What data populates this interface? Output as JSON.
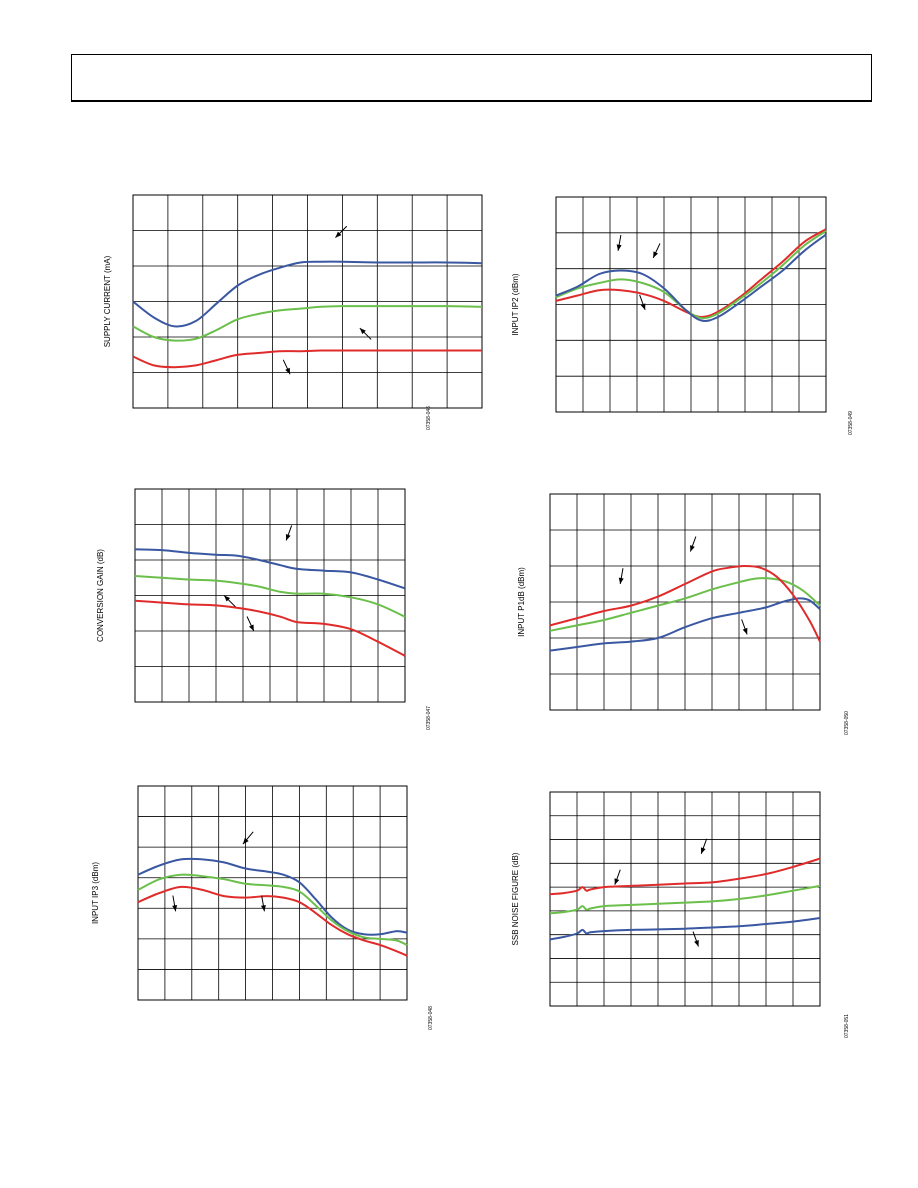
{
  "page": {
    "header_text": ""
  },
  "chart_data": [
    {
      "id": "supply-current",
      "type": "line",
      "ylabel": "SUPPLY CURRENT (mA)",
      "fig_id": "07358-046",
      "grid": true,
      "xlim": [
        0,
        10
      ],
      "ylim": [
        0,
        6
      ],
      "series": [
        {
          "color": "#3a57a2",
          "x": [
            0,
            0.6,
            1.2,
            1.8,
            2.4,
            3.0,
            3.6,
            4.2,
            4.8,
            5.4,
            6.0,
            7.0,
            8.0,
            9.0,
            10.0
          ],
          "y": [
            3.0,
            2.55,
            2.3,
            2.45,
            2.95,
            3.45,
            3.75,
            3.95,
            4.1,
            4.12,
            4.12,
            4.1,
            4.1,
            4.1,
            4.08
          ]
        },
        {
          "color": "#6bbf4b",
          "x": [
            0,
            0.6,
            1.2,
            1.8,
            2.4,
            3.0,
            3.6,
            4.2,
            4.8,
            5.4,
            6.0,
            7.0,
            8.0,
            9.0,
            10.0
          ],
          "y": [
            2.3,
            2.0,
            1.9,
            1.95,
            2.2,
            2.5,
            2.65,
            2.75,
            2.8,
            2.85,
            2.87,
            2.87,
            2.87,
            2.87,
            2.85
          ]
        },
        {
          "color": "#e02b2b",
          "x": [
            0,
            0.6,
            1.2,
            1.8,
            2.4,
            3.0,
            3.6,
            4.2,
            4.8,
            5.4,
            6.0,
            7.0,
            8.0,
            9.0,
            10.0
          ],
          "y": [
            1.45,
            1.2,
            1.15,
            1.2,
            1.35,
            1.5,
            1.55,
            1.6,
            1.6,
            1.62,
            1.62,
            1.62,
            1.62,
            1.62,
            1.62
          ]
        }
      ],
      "arrows": [
        {
          "x": 5.8,
          "y": 4.8,
          "angle": 225
        },
        {
          "x": 6.5,
          "y": 2.25,
          "angle": 135
        },
        {
          "x": 4.5,
          "y": 0.95,
          "angle": 295
        }
      ]
    },
    {
      "id": "input-ip2",
      "type": "line",
      "ylabel": "INPUT IP2 (dBm)",
      "fig_id": "07358-049",
      "grid": true,
      "xlim": [
        0,
        10
      ],
      "ylim": [
        0,
        6
      ],
      "series": [
        {
          "color": "#e02b2b",
          "x": [
            0,
            0.8,
            1.6,
            2.4,
            3.2,
            4.0,
            4.8,
            5.4,
            6.0,
            6.8,
            7.6,
            8.4,
            9.2,
            10.0
          ],
          "y": [
            3.1,
            3.25,
            3.4,
            3.4,
            3.3,
            3.1,
            2.8,
            2.65,
            2.8,
            3.2,
            3.7,
            4.2,
            4.75,
            5.1
          ]
        },
        {
          "color": "#6bbf4b",
          "x": [
            0,
            0.8,
            1.6,
            2.4,
            3.2,
            4.0,
            4.8,
            5.4,
            6.0,
            6.8,
            7.6,
            8.4,
            9.2,
            10.0
          ],
          "y": [
            3.2,
            3.45,
            3.6,
            3.7,
            3.6,
            3.35,
            2.85,
            2.62,
            2.75,
            3.15,
            3.6,
            4.1,
            4.65,
            5.05
          ]
        },
        {
          "color": "#3a57a2",
          "x": [
            0,
            0.8,
            1.6,
            2.4,
            3.2,
            4.0,
            4.8,
            5.4,
            6.0,
            6.8,
            7.6,
            8.4,
            9.2,
            10.0
          ],
          "y": [
            3.25,
            3.5,
            3.85,
            3.95,
            3.85,
            3.45,
            2.85,
            2.55,
            2.65,
            3.05,
            3.5,
            3.95,
            4.5,
            4.95
          ]
        }
      ],
      "arrows": [
        {
          "x": 2.3,
          "y": 4.5,
          "angle": 260
        },
        {
          "x": 3.6,
          "y": 4.3,
          "angle": 245
        },
        {
          "x": 3.3,
          "y": 2.85,
          "angle": 290
        }
      ]
    },
    {
      "id": "conversion-gain",
      "type": "line",
      "ylabel": "CONVERSION GAIN (dB)",
      "fig_id": "07358-047",
      "grid": true,
      "xlim": [
        0,
        10
      ],
      "ylim": [
        0,
        6
      ],
      "series": [
        {
          "color": "#3a57a2",
          "x": [
            0,
            1.0,
            2.0,
            3.0,
            3.8,
            4.6,
            5.4,
            6.0,
            7.0,
            8.0,
            9.0,
            10.0
          ],
          "y": [
            4.3,
            4.28,
            4.2,
            4.15,
            4.12,
            4.0,
            3.85,
            3.75,
            3.7,
            3.65,
            3.45,
            3.2
          ]
        },
        {
          "color": "#6bbf4b",
          "x": [
            0,
            1.0,
            2.0,
            3.0,
            3.8,
            4.6,
            5.4,
            6.0,
            7.0,
            8.0,
            9.0,
            10.0
          ],
          "y": [
            3.55,
            3.5,
            3.45,
            3.42,
            3.35,
            3.25,
            3.1,
            3.05,
            3.05,
            2.95,
            2.75,
            2.4
          ]
        },
        {
          "color": "#e02b2b",
          "x": [
            0,
            1.0,
            2.0,
            3.0,
            3.8,
            4.6,
            5.4,
            6.0,
            7.0,
            8.0,
            9.0,
            10.0
          ],
          "y": [
            2.85,
            2.8,
            2.75,
            2.72,
            2.65,
            2.55,
            2.4,
            2.25,
            2.2,
            2.05,
            1.7,
            1.3
          ]
        }
      ],
      "arrows": [
        {
          "x": 5.6,
          "y": 4.55,
          "angle": 250
        },
        {
          "x": 3.3,
          "y": 3.0,
          "angle": 135
        },
        {
          "x": 4.4,
          "y": 2.0,
          "angle": 295
        }
      ]
    },
    {
      "id": "input-p1db",
      "type": "line",
      "ylabel": "INPUT P1dB (dBm)",
      "fig_id": "07358-050",
      "grid": true,
      "xlim": [
        0,
        10
      ],
      "ylim": [
        0,
        6
      ],
      "series": [
        {
          "color": "#3a57a2",
          "x": [
            0,
            1.0,
            2.0,
            3.0,
            4.0,
            5.0,
            6.0,
            7.0,
            8.0,
            8.6,
            9.2,
            9.6,
            10.0
          ],
          "y": [
            1.65,
            1.75,
            1.85,
            1.9,
            2.0,
            2.3,
            2.55,
            2.7,
            2.85,
            3.0,
            3.1,
            3.05,
            2.8
          ]
        },
        {
          "color": "#6bbf4b",
          "x": [
            0,
            1.0,
            2.0,
            3.0,
            4.0,
            5.0,
            6.0,
            7.0,
            7.6,
            8.2,
            8.8,
            9.4,
            10.0
          ],
          "y": [
            2.2,
            2.35,
            2.5,
            2.7,
            2.9,
            3.1,
            3.35,
            3.55,
            3.65,
            3.65,
            3.55,
            3.3,
            2.9
          ]
        },
        {
          "color": "#e02b2b",
          "x": [
            0,
            1.0,
            2.0,
            3.0,
            4.0,
            5.0,
            6.0,
            6.6,
            7.2,
            7.8,
            8.4,
            9.0,
            9.6,
            10.0
          ],
          "y": [
            2.35,
            2.55,
            2.75,
            2.9,
            3.15,
            3.5,
            3.85,
            3.95,
            4.0,
            3.95,
            3.7,
            3.2,
            2.5,
            1.9
          ]
        }
      ],
      "arrows": [
        {
          "x": 5.2,
          "y": 4.4,
          "angle": 250
        },
        {
          "x": 2.6,
          "y": 3.5,
          "angle": 260
        },
        {
          "x": 7.3,
          "y": 2.1,
          "angle": 290
        }
      ]
    },
    {
      "id": "input-ip3",
      "type": "line",
      "ylabel": "INPUT IP3 (dBm)",
      "fig_id": "07358-048",
      "grid": true,
      "xlim": [
        0,
        10
      ],
      "ylim": [
        0,
        7
      ],
      "series": [
        {
          "color": "#3a57a2",
          "x": [
            0,
            0.8,
            1.6,
            2.4,
            3.2,
            4.0,
            4.8,
            5.4,
            6.0,
            6.6,
            7.2,
            7.8,
            8.4,
            9.0,
            9.6,
            10.0
          ],
          "y": [
            4.1,
            4.4,
            4.6,
            4.6,
            4.5,
            4.3,
            4.2,
            4.1,
            3.85,
            3.3,
            2.7,
            2.3,
            2.15,
            2.15,
            2.25,
            2.2
          ]
        },
        {
          "color": "#6bbf4b",
          "x": [
            0,
            0.8,
            1.6,
            2.4,
            3.2,
            4.0,
            4.8,
            5.4,
            6.0,
            6.6,
            7.2,
            7.8,
            8.4,
            9.0,
            9.6,
            10.0
          ],
          "y": [
            3.6,
            3.95,
            4.1,
            4.05,
            3.95,
            3.8,
            3.75,
            3.7,
            3.55,
            3.1,
            2.6,
            2.25,
            2.05,
            2.0,
            1.95,
            1.8
          ]
        },
        {
          "color": "#e02b2b",
          "x": [
            0,
            0.8,
            1.6,
            2.4,
            3.2,
            4.0,
            4.8,
            5.4,
            6.0,
            6.6,
            7.2,
            7.8,
            8.4,
            9.0,
            9.6,
            10.0
          ],
          "y": [
            3.2,
            3.5,
            3.7,
            3.6,
            3.4,
            3.35,
            3.4,
            3.35,
            3.2,
            2.85,
            2.45,
            2.15,
            1.95,
            1.8,
            1.6,
            1.45
          ]
        }
      ],
      "arrows": [
        {
          "x": 3.9,
          "y": 5.1,
          "angle": 230
        },
        {
          "x": 1.4,
          "y": 2.9,
          "angle": 280
        },
        {
          "x": 4.7,
          "y": 2.9,
          "angle": 280
        }
      ]
    },
    {
      "id": "ssb-noise-figure",
      "type": "line",
      "ylabel": "SSB NOISE FIGURE (dB)",
      "fig_id": "07358-051",
      "grid": true,
      "xlim": [
        0,
        10
      ],
      "ylim": [
        0,
        9
      ],
      "series": [
        {
          "color": "#e02b2b",
          "x": [
            0,
            0.5,
            1.0,
            1.2,
            1.35,
            1.5,
            2.0,
            3.0,
            4.0,
            5.0,
            6.0,
            7.0,
            8.0,
            9.0,
            10.0
          ],
          "y": [
            4.7,
            4.75,
            4.85,
            5.0,
            4.85,
            4.9,
            5.0,
            5.05,
            5.1,
            5.15,
            5.2,
            5.35,
            5.55,
            5.85,
            6.2
          ]
        },
        {
          "color": "#6bbf4b",
          "x": [
            0,
            0.5,
            1.0,
            1.2,
            1.35,
            1.5,
            2.0,
            3.0,
            4.0,
            5.0,
            6.0,
            7.0,
            8.0,
            9.0,
            10.0
          ],
          "y": [
            3.9,
            3.95,
            4.05,
            4.2,
            4.05,
            4.1,
            4.2,
            4.25,
            4.3,
            4.35,
            4.4,
            4.5,
            4.65,
            4.85,
            5.05
          ]
        },
        {
          "color": "#3a57a2",
          "x": [
            0,
            0.5,
            1.0,
            1.2,
            1.35,
            1.5,
            2.0,
            3.0,
            4.0,
            5.0,
            6.0,
            7.0,
            8.0,
            9.0,
            10.0
          ],
          "y": [
            2.8,
            2.9,
            3.05,
            3.2,
            3.05,
            3.1,
            3.15,
            3.2,
            3.22,
            3.25,
            3.3,
            3.35,
            3.45,
            3.55,
            3.7
          ]
        }
      ],
      "arrows": [
        {
          "x": 5.6,
          "y": 6.4,
          "angle": 250
        },
        {
          "x": 2.4,
          "y": 5.1,
          "angle": 250
        },
        {
          "x": 5.5,
          "y": 2.5,
          "angle": 290
        }
      ]
    }
  ]
}
